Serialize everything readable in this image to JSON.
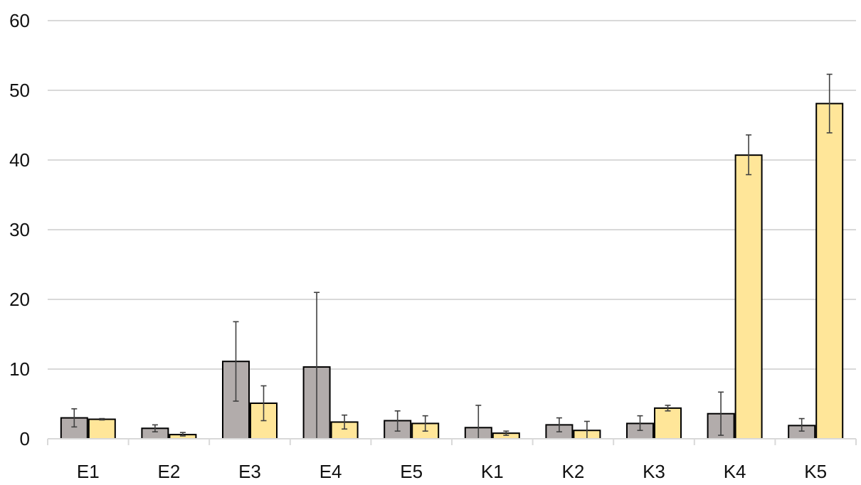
{
  "chart_data": {
    "type": "bar",
    "categories": [
      "E1",
      "E2",
      "E3",
      "E4",
      "E5",
      "K1",
      "K2",
      "K3",
      "K4",
      "K5"
    ],
    "series": [
      {
        "color": "#b2acab",
        "values": [
          3.0,
          1.5,
          11.1,
          10.3,
          2.6,
          1.6,
          2.0,
          2.2,
          3.6,
          1.9
        ],
        "error_low": [
          1.7,
          1.0,
          5.4,
          0.0,
          1.1,
          0.0,
          1.0,
          1.2,
          0.5,
          1.1
        ],
        "error_high": [
          4.3,
          2.0,
          16.8,
          21.0,
          4.0,
          4.8,
          3.0,
          3.3,
          6.7,
          2.9
        ]
      },
      {
        "color": "#ffe699",
        "values": [
          2.8,
          0.6,
          5.1,
          2.4,
          2.2,
          0.8,
          1.2,
          4.4,
          40.7,
          48.1
        ],
        "error_low": [
          2.7,
          0.4,
          2.6,
          1.4,
          1.1,
          0.5,
          0.0,
          4.0,
          37.9,
          43.9
        ],
        "error_high": [
          2.9,
          0.9,
          7.6,
          3.4,
          3.3,
          1.1,
          2.5,
          4.8,
          43.6,
          52.3
        ]
      }
    ],
    "ylim": [
      0,
      60
    ],
    "yticks": [
      "0",
      "10",
      "20",
      "30",
      "40",
      "50",
      "60"
    ],
    "grid": true,
    "title": "",
    "xlabel": "",
    "ylabel": ""
  }
}
